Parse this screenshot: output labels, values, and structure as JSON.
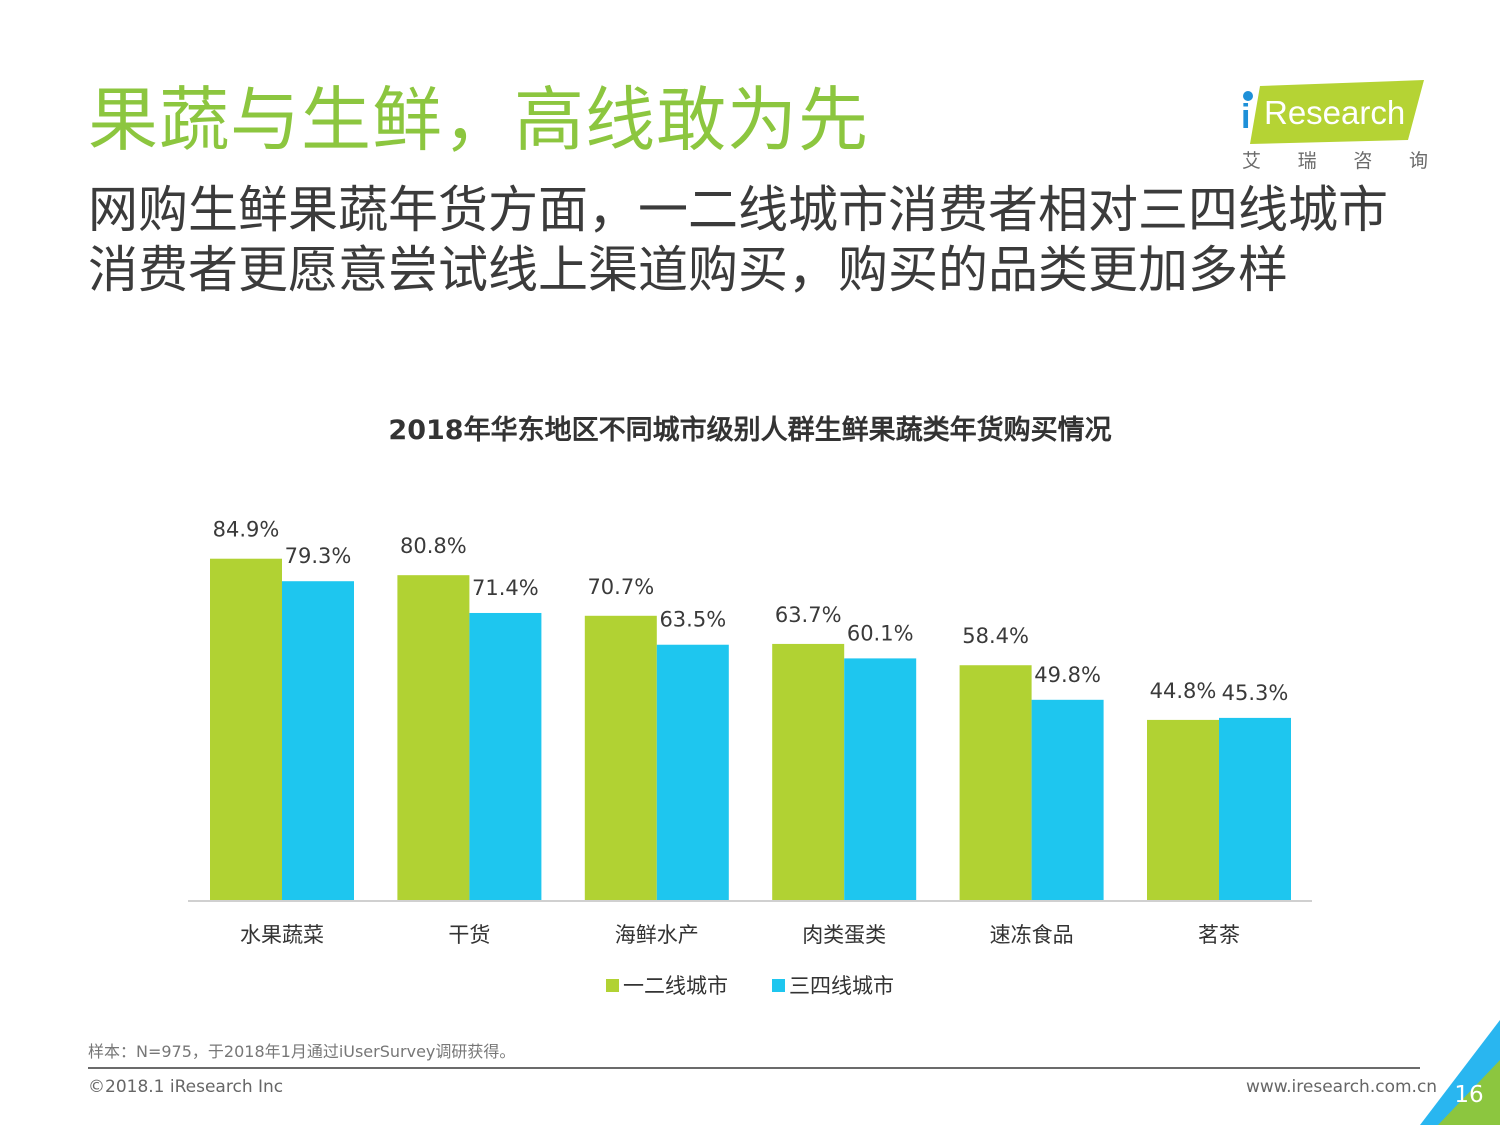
{
  "header": {
    "title": "果蔬与生鲜，高线敢为先",
    "subtitle": "网购生鲜果蔬年货方面，一二线城市消费者相对三四线城市消费者更愿意尝试线上渠道购买，购买的品类更加多样"
  },
  "logo": {
    "brand_i": "i",
    "brand_rest": "Research",
    "cn_chars": [
      "艾",
      "瑞",
      "咨",
      "询"
    ],
    "accent_color": "#b5d334",
    "dot_color": "#1e90d8"
  },
  "chart_data": {
    "type": "bar",
    "title": "2018年华东地区不同城市级别人群生鲜果蔬类年货购买情况",
    "categories": [
      "水果蔬菜",
      "干货",
      "海鲜水产",
      "肉类蛋类",
      "速冻食品",
      "茗茶"
    ],
    "series": [
      {
        "name": "一二线城市",
        "values": [
          84.9,
          80.8,
          70.7,
          63.7,
          58.4,
          44.8
        ],
        "labels": [
          "84.9%",
          "80.8%",
          "70.7%",
          "63.7%",
          "58.4%",
          "44.8%"
        ],
        "color": "#b1d233"
      },
      {
        "name": "三四线城市",
        "values": [
          79.3,
          71.4,
          63.5,
          60.1,
          49.8,
          45.3
        ],
        "labels": [
          "79.3%",
          "71.4%",
          "63.5%",
          "60.1%",
          "49.8%",
          "45.3%"
        ],
        "color": "#1ec6ef"
      }
    ],
    "ylim": [
      0,
      100
    ],
    "grid": false,
    "legend": "bottom-center"
  },
  "footer": {
    "note": "样本：N=975，于2018年1月通过iUserSurvey调研获得。",
    "copyright": "©2018.1 iResearch Inc",
    "website": "www.iresearch.com.cn",
    "page_number": "16"
  }
}
